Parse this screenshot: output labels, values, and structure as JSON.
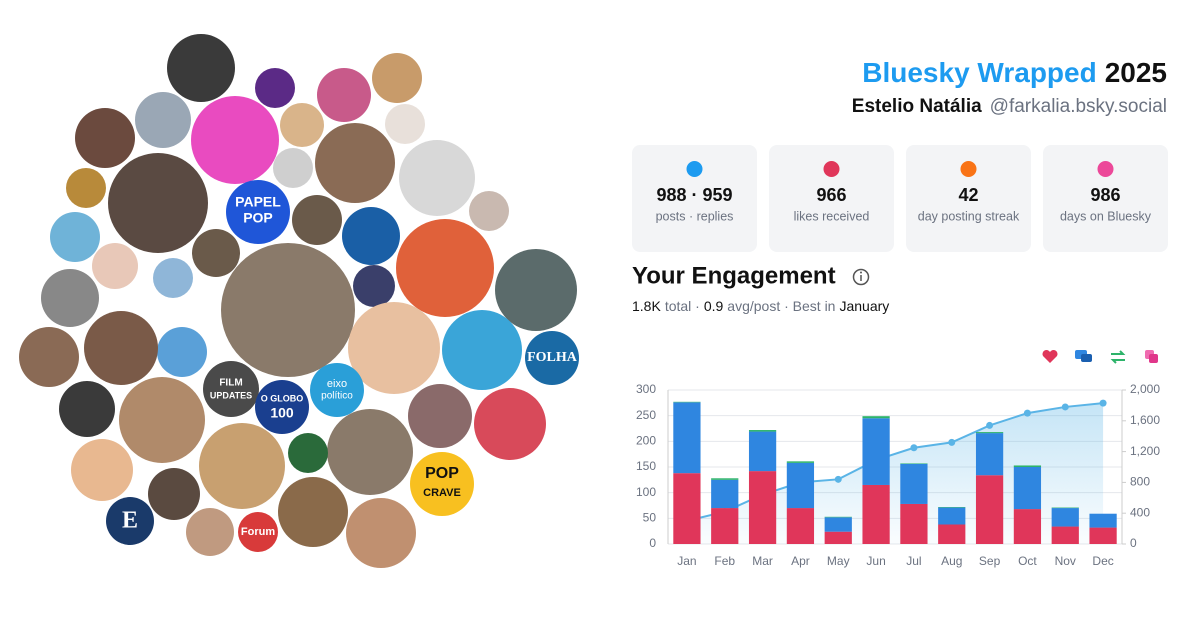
{
  "header": {
    "title_brand": "Bluesky Wrapped",
    "title_year": "2025",
    "name": "Estelio Natália",
    "handle": "@farkalia.bsky.social"
  },
  "stats": [
    {
      "value": "988 · 959",
      "label": "posts · replies"
    },
    {
      "value": "966",
      "label": "likes received"
    },
    {
      "value": "42",
      "label": "day posting streak"
    },
    {
      "value": "986",
      "label": "days on Bluesky"
    }
  ],
  "engagement": {
    "title": "Your Engagement",
    "parts": [
      "1.8K",
      "total ·",
      "0.9",
      "avg/post · Best in",
      "January"
    ]
  },
  "avatars": {
    "labels": [
      "PAPEL",
      "POP",
      "FOLHA",
      "FILM",
      "UPDATES",
      "O GLOBO",
      "100",
      "eixo",
      "político",
      "POP",
      "CRAVE",
      "E",
      "Forum"
    ]
  },
  "chart_data": {
    "type": "bar",
    "categories": [
      "Jan",
      "Feb",
      "Mar",
      "Apr",
      "May",
      "Jun",
      "Jul",
      "Aug",
      "Sep",
      "Oct",
      "Nov",
      "Dec"
    ],
    "series": [
      {
        "color": "#e0365a",
        "values": [
          138,
          70,
          142,
          70,
          24,
          115,
          78,
          38,
          134,
          68,
          34,
          32
        ]
      },
      {
        "color": "#2f86e0",
        "values": [
          138,
          55,
          77,
          88,
          28,
          130,
          78,
          33,
          82,
          82,
          36,
          27
        ]
      },
      {
        "color": "#2db36a",
        "values": [
          1,
          3,
          3,
          3,
          1,
          4,
          1,
          1,
          2,
          3,
          1,
          0
        ]
      },
      {
        "type": "line",
        "axis": "y2",
        "color": "#5ab4e6",
        "values": [
          300,
          420,
          640,
          800,
          840,
          1090,
          1250,
          1320,
          1540,
          1700,
          1780,
          1830
        ]
      }
    ],
    "ylim": [
      0,
      300
    ],
    "yticks": [
      0,
      50,
      100,
      150,
      200,
      250,
      300
    ],
    "y2lim": [
      0,
      2000
    ],
    "y2ticks": [
      0,
      400,
      800,
      {
        "value": 1200,
        "label": "1,200"
      },
      {
        "value": 1600,
        "label": "1,600"
      },
      {
        "value": 2000,
        "label": "2,000"
      }
    ],
    "grid": true
  }
}
